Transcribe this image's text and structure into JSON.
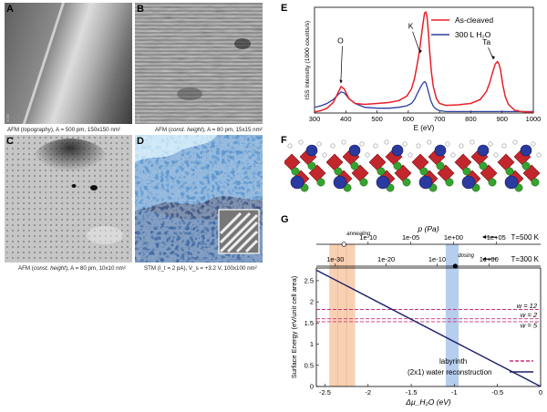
{
  "panels": {
    "a": {
      "letter": "A",
      "caption_pre": "AFM (",
      "caption_mode": "topography",
      "caption_post": "), A = 500 pm, 150x150 nm²",
      "side_id": "3266"
    },
    "b": {
      "letter": "B",
      "caption_pre": "AFM (",
      "caption_mode": "const. height",
      "caption_post": "), A = 80 pm, 15x15 nm²",
      "side_id": "3399"
    },
    "c": {
      "letter": "C",
      "caption_pre": "AFM (",
      "caption_mode": "const. height",
      "caption_post": "), A = 80 pm, 10x10 nm²",
      "side_id": "3279"
    },
    "d": {
      "letter": "D",
      "caption": "STM (I_t = 2 pA), V_s = +3.2 V, 100x100 nm²",
      "side_id": "3174"
    },
    "e": {
      "letter": "E"
    },
    "f": {
      "letter": "F"
    },
    "g": {
      "letter": "G"
    }
  },
  "chart_data": [
    {
      "type": "line",
      "panel": "E",
      "xlabel": "E (eV)",
      "ylabel": "ISS intensity (1000 counts/s)",
      "xlim": [
        300,
        1000
      ],
      "x_ticks": [
        300,
        400,
        500,
        600,
        700,
        800,
        900,
        1000
      ],
      "ylim": [
        0,
        2.2
      ],
      "legend_position": "top-right",
      "annotations": [
        {
          "text": "O",
          "x": 390
        },
        {
          "text": "K",
          "x": 650
        },
        {
          "text": "Ta",
          "x": 880
        }
      ],
      "series": [
        {
          "name": "As-cleaved",
          "color": "#e8202a",
          "x": [
            300,
            320,
            340,
            360,
            375,
            385,
            395,
            410,
            430,
            460,
            500,
            540,
            570,
            595,
            610,
            620,
            628,
            636,
            642,
            648,
            652,
            656,
            660,
            664,
            668,
            674,
            680,
            690,
            700,
            720,
            760,
            800,
            830,
            850,
            860,
            870,
            878,
            885,
            890,
            895,
            902,
            910,
            920,
            940,
            960,
            980,
            1000
          ],
          "y": [
            0.02,
            0.05,
            0.1,
            0.22,
            0.42,
            0.55,
            0.5,
            0.3,
            0.2,
            0.18,
            0.2,
            0.22,
            0.26,
            0.35,
            0.5,
            0.72,
            1.0,
            1.3,
            1.62,
            1.9,
            2.08,
            2.1,
            2.0,
            1.7,
            1.3,
            0.85,
            0.55,
            0.3,
            0.2,
            0.16,
            0.17,
            0.2,
            0.28,
            0.45,
            0.62,
            0.85,
            1.02,
            1.07,
            1.02,
            0.9,
            0.6,
            0.35,
            0.18,
            0.06,
            0.03,
            0.02,
            0.02
          ]
        },
        {
          "name": "300 L H₂O",
          "color": "#2c3f9c",
          "x": [
            300,
            320,
            340,
            360,
            375,
            385,
            395,
            410,
            430,
            460,
            500,
            540,
            570,
            595,
            610,
            620,
            630,
            640,
            648,
            652,
            656,
            660,
            666,
            672,
            680,
            690,
            700,
            720,
            760,
            800,
            850,
            900,
            950,
            1000
          ],
          "y": [
            0.12,
            0.15,
            0.2,
            0.28,
            0.38,
            0.44,
            0.42,
            0.3,
            0.2,
            0.12,
            0.1,
            0.1,
            0.12,
            0.15,
            0.2,
            0.28,
            0.42,
            0.55,
            0.63,
            0.65,
            0.63,
            0.55,
            0.4,
            0.26,
            0.14,
            0.08,
            0.05,
            0.03,
            0.03,
            0.03,
            0.03,
            0.03,
            0.03,
            0.03
          ]
        }
      ]
    },
    {
      "type": "line",
      "panel": "G",
      "xlabel": "Δμ_H₂O (eV)",
      "ylabel": "Surface Energy (eV/unit cell area)",
      "xlim": [
        -2.6,
        0
      ],
      "x_ticks": [
        -2.5,
        -2,
        -1.5,
        -1,
        -0.5,
        0
      ],
      "ylim": [
        0,
        2.8
      ],
      "y_ticks": [
        0,
        0.5,
        1,
        1.5,
        2,
        2.5
      ],
      "legend_position": "bottom-right",
      "top_axes": [
        {
          "label": "p (Pa)",
          "temperature": "T=500 K",
          "ticks": [
            {
              "label": "1e-10",
              "x": -2.0
            },
            {
              "label": "1e-05",
              "x": -1.505
            },
            {
              "label": "1e+00",
              "x": -1.01
            },
            {
              "label": "1e+05",
              "x": -0.515
            }
          ],
          "marker": {
            "label": "annealing",
            "x": -2.28
          }
        },
        {
          "label": "",
          "temperature": "T=300 K",
          "ticks": [
            {
              "label": "1e-30",
              "x": -2.38
            },
            {
              "label": "1e-20",
              "x": -1.79
            },
            {
              "label": "1e-10",
              "x": -1.2
            },
            {
              "label": "1e+00",
              "x": -0.6
            }
          ],
          "marker": {
            "label": "dosing",
            "x": -0.99
          }
        }
      ],
      "shaded_regions": [
        {
          "name": "annealing",
          "from": -2.45,
          "to": -2.15,
          "color": "#f7c9a6"
        },
        {
          "name": "dosing",
          "from": -1.1,
          "to": -0.95,
          "color": "#a9c4ea"
        }
      ],
      "hlines": [
        {
          "label": "w = 12",
          "y": 1.82,
          "color": "#c8307a"
        },
        {
          "label": "w = 2",
          "y": 1.6,
          "color": "#c8307a"
        },
        {
          "label": "w = 5",
          "y": 1.53,
          "color": "#c8307a"
        }
      ],
      "series": [
        {
          "name": "labyrinth",
          "color": "#c8307a",
          "dashed": true,
          "x": [
            -2.6,
            0
          ],
          "y": [
            1.53,
            1.53
          ]
        },
        {
          "name": "(2x1) water reconstruction",
          "color": "#1b1f6b",
          "x": [
            -2.6,
            0
          ],
          "y": [
            2.75,
            0
          ]
        }
      ]
    }
  ]
}
